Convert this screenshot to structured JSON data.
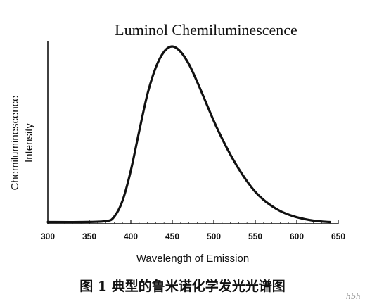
{
  "chart_data": {
    "type": "line",
    "title": "Luminol   Chemiluminescence",
    "xlabel": "Wavelength of Emission",
    "ylabel_lines": [
      "Chemiluminescence",
      "Intensity"
    ],
    "xlim": [
      300,
      650
    ],
    "ylim": [
      0,
      1
    ],
    "xticks": [
      300,
      350,
      400,
      450,
      500,
      550,
      600,
      650
    ],
    "xtick_labels": [
      "300",
      "350",
      "400",
      "450",
      "500",
      "550",
      "600",
      "650"
    ],
    "grid": false,
    "series": [
      {
        "color": "#111111",
        "x": [
          300,
          340,
          370,
          380,
          390,
          400,
          410,
          420,
          430,
          440,
          450,
          460,
          470,
          480,
          490,
          500,
          510,
          520,
          530,
          540,
          550,
          560,
          570,
          580,
          590,
          600,
          610,
          620,
          630,
          640
        ],
        "y": [
          0.01,
          0.01,
          0.015,
          0.04,
          0.13,
          0.3,
          0.52,
          0.73,
          0.88,
          0.97,
          1.0,
          0.97,
          0.9,
          0.8,
          0.69,
          0.58,
          0.48,
          0.39,
          0.31,
          0.24,
          0.18,
          0.135,
          0.1,
          0.072,
          0.052,
          0.037,
          0.026,
          0.018,
          0.013,
          0.01
        ]
      }
    ]
  },
  "caption": "图 1  典型的鲁米诺化学发光光谱图",
  "watermark": "hbh"
}
